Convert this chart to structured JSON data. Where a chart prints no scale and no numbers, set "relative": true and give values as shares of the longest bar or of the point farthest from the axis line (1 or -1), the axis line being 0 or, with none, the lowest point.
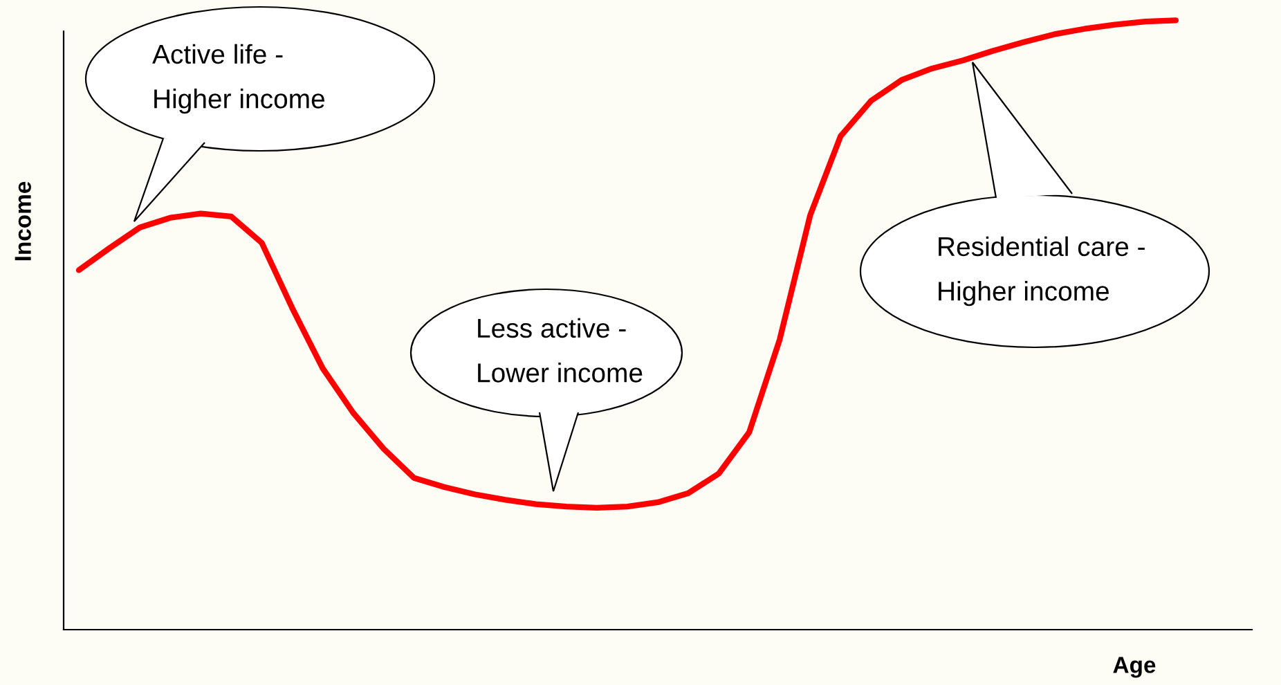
{
  "chart_data": {
    "type": "line",
    "relative": true,
    "xlabel": "Age",
    "ylabel": "Income",
    "categories": [
      null,
      null,
      null,
      null,
      null,
      null,
      null,
      null,
      null,
      null,
      null,
      null,
      null,
      null,
      null,
      null,
      null,
      null,
      null,
      null,
      null,
      null,
      null,
      null,
      null,
      null,
      null,
      null,
      null,
      null,
      null,
      null,
      null,
      null,
      null,
      null,
      null
    ],
    "series": [
      {
        "color": "#ff0000",
        "values": [
          0.59,
          0.626,
          0.66,
          0.676,
          0.683,
          0.678,
          0.635,
          0.528,
          0.429,
          0.356,
          0.297,
          0.249,
          0.234,
          0.222,
          0.213,
          0.206,
          0.202,
          0.2,
          0.202,
          0.209,
          0.224,
          0.256,
          0.324,
          0.476,
          0.68,
          0.81,
          0.868,
          0.902,
          0.921,
          0.934,
          0.95,
          0.964,
          0.977,
          0.986,
          0.993,
          0.998,
          1.0
        ]
      }
    ],
    "annotations": [
      "Active life -\nHigher income",
      "Less active -\nLower income",
      "Residential care -\nHigher income"
    ]
  }
}
